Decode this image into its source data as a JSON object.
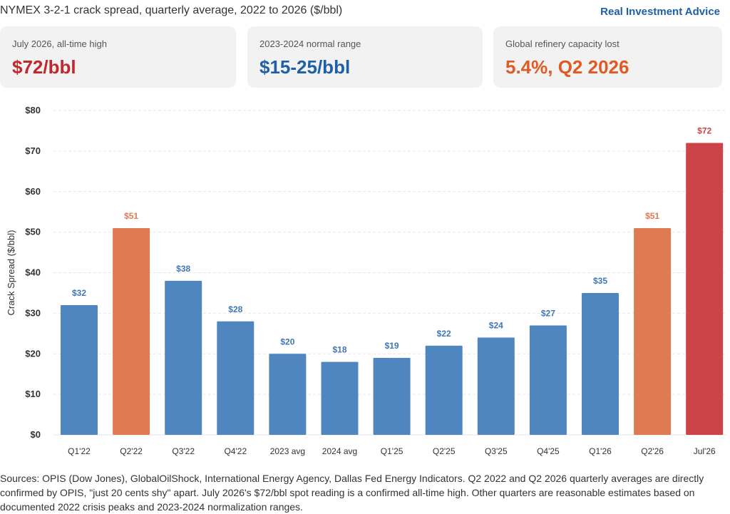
{
  "header": {
    "title": "NYMEX 3-2-1 crack spread, quarterly average, 2022 to 2026 ($/bbl)",
    "brand": "Real Investment Advice"
  },
  "cards": [
    {
      "label": "July 2026, all-time high",
      "value": "$72/bbl",
      "color": "#c0282d"
    },
    {
      "label": "2023-2024 normal range",
      "value": "$15-25/bbl",
      "color": "#1f5fa6"
    },
    {
      "label": "Global refinery capacity lost",
      "value": "5.4%, Q2 2026",
      "color": "#e05a24"
    }
  ],
  "colors": {
    "normal": "#4f86c0",
    "elevated": "#e07a50",
    "peak": "#cc4448"
  },
  "chart_data": {
    "type": "bar",
    "title": "",
    "xlabel": "",
    "ylabel": "Crack Spread ($/bbl)",
    "ylim": [
      0,
      80
    ],
    "yticks": [
      0,
      10,
      20,
      30,
      40,
      50,
      60,
      70,
      80
    ],
    "ytick_labels": [
      "$0",
      "$10",
      "$20",
      "$30",
      "$40",
      "$50",
      "$60",
      "$70",
      "$80"
    ],
    "grid": true,
    "categories": [
      "Q1'22",
      "Q2'22",
      "Q3'22",
      "Q4'22",
      "2023 avg",
      "2024 avg",
      "Q1'25",
      "Q2'25",
      "Q3'25",
      "Q4'25",
      "Q1'26",
      "Q2'26",
      "Jul'26"
    ],
    "values": [
      32,
      51,
      38,
      28,
      20,
      18,
      19,
      22,
      24,
      27,
      35,
      51,
      72
    ],
    "data_labels": [
      "$32",
      "$51",
      "$38",
      "$28",
      "$20",
      "$18",
      "$19",
      "$22",
      "$24",
      "$27",
      "$35",
      "$51",
      "$72"
    ],
    "bar_colors": [
      "normal",
      "elevated",
      "normal",
      "normal",
      "normal",
      "normal",
      "normal",
      "normal",
      "normal",
      "normal",
      "normal",
      "elevated",
      "peak"
    ]
  },
  "sources": "Sources: OPIS (Dow Jones), GlobalOilShock, International Energy Agency, Dallas Fed Energy Indicators. Q2 2022 and Q2 2026 quarterly averages are directly confirmed by OPIS, \"just 20 cents shy\" apart. July 2026's $72/bbl spot reading is a confirmed all-time high. Other quarters are reasonable estimates based on documented 2022 crisis peaks and 2023-2024 normalization ranges."
}
